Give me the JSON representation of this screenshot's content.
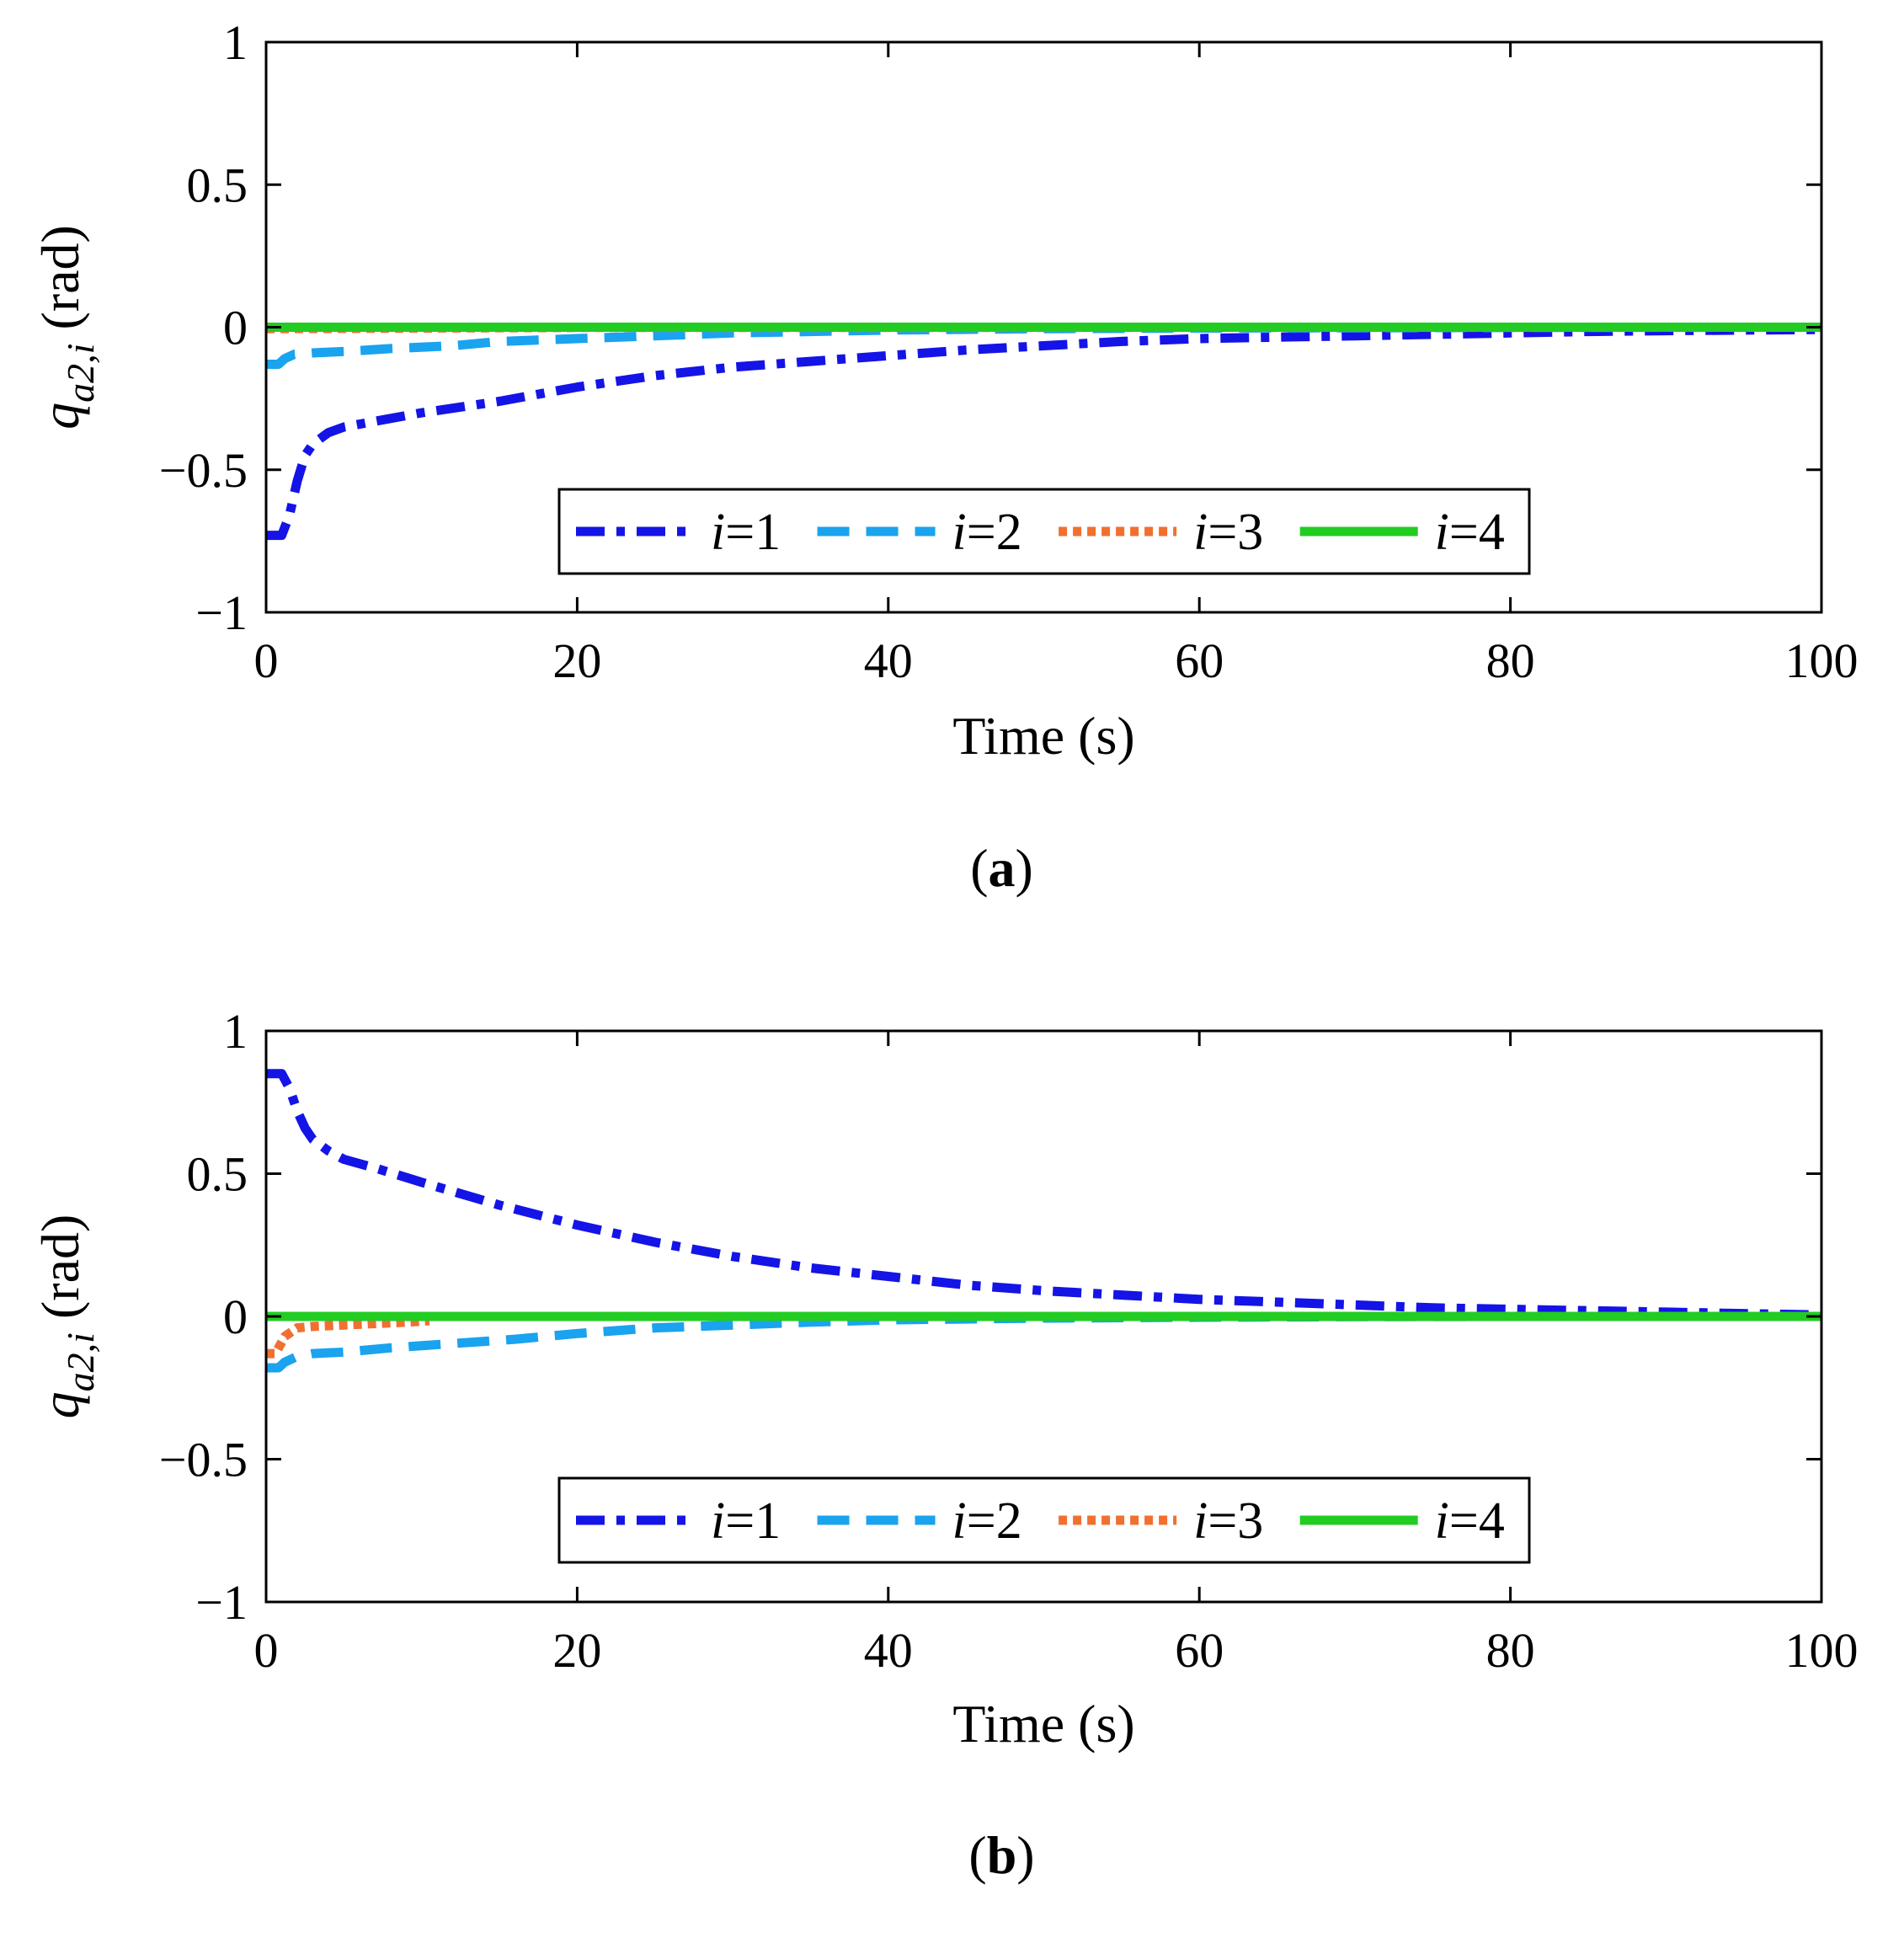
{
  "chart_data": [
    {
      "type": "line",
      "caption": "a",
      "xlabel": "Time (s)",
      "ylabel_main": "q",
      "ylabel_sub": "a2,i",
      "ylabel_unit": "(rad)",
      "xlim": [
        0,
        100
      ],
      "ylim": [
        -1,
        1
      ],
      "xticks": [
        "0",
        "20",
        "40",
        "60",
        "80",
        "100"
      ],
      "yticks": [
        "−1",
        "−0.5",
        "0",
        "0.5",
        "1"
      ],
      "grid": false,
      "legend_position": "bottom-center",
      "series": [
        {
          "name": "i=1",
          "legend_var": "i",
          "legend_eq": "=1",
          "color": "#1414e6",
          "style": "dashdot",
          "x": [
            0,
            1.0,
            1.5,
            2.0,
            2.5,
            3,
            4,
            5,
            7,
            10,
            15,
            20,
            25,
            30,
            35,
            40,
            45,
            50,
            55,
            60,
            65,
            70,
            75,
            80,
            85,
            90,
            95,
            100
          ],
          "y": [
            -0.73,
            -0.73,
            -0.66,
            -0.54,
            -0.45,
            -0.41,
            -0.37,
            -0.35,
            -0.33,
            -0.3,
            -0.26,
            -0.21,
            -0.17,
            -0.14,
            -0.12,
            -0.1,
            -0.08,
            -0.065,
            -0.05,
            -0.04,
            -0.035,
            -0.03,
            -0.025,
            -0.02,
            -0.015,
            -0.012,
            -0.01,
            -0.008
          ]
        },
        {
          "name": "i=2",
          "legend_var": "i",
          "legend_eq": "=2",
          "color": "#1aa3ee",
          "style": "dashed",
          "x": [
            0,
            0.8,
            1.2,
            1.8,
            3,
            5,
            8,
            12,
            15,
            20,
            25,
            30,
            40,
            50,
            60,
            70,
            80,
            100
          ],
          "y": [
            -0.13,
            -0.13,
            -0.11,
            -0.095,
            -0.09,
            -0.085,
            -0.075,
            -0.065,
            -0.05,
            -0.04,
            -0.03,
            -0.02,
            -0.01,
            -0.005,
            -0.003,
            -0.002,
            -0.001,
            0.0
          ]
        },
        {
          "name": "i=3",
          "legend_var": "i",
          "legend_eq": "=3",
          "color": "#f07030",
          "style": "dotted",
          "x": [
            0,
            5,
            10,
            20,
            100
          ],
          "y": [
            -0.005,
            -0.004,
            -0.003,
            -0.001,
            0.0
          ]
        },
        {
          "name": "i=4",
          "legend_var": "i",
          "legend_eq": "=4",
          "color": "#22cc22",
          "style": "solid",
          "x": [
            0,
            100
          ],
          "y": [
            0.0,
            0.0
          ]
        }
      ]
    },
    {
      "type": "line",
      "caption": "b",
      "xlabel": "Time (s)",
      "ylabel_main": "q",
      "ylabel_sub": "a2,i",
      "ylabel_unit": "(rad)",
      "xlim": [
        0,
        100
      ],
      "ylim": [
        -1,
        1
      ],
      "xticks": [
        "0",
        "20",
        "40",
        "60",
        "80",
        "100"
      ],
      "yticks": [
        "−1",
        "−0.5",
        "0",
        "0.5",
        "1"
      ],
      "grid": false,
      "legend_position": "bottom-center",
      "series": [
        {
          "name": "i=1",
          "legend_var": "i",
          "legend_eq": "=1",
          "color": "#1414e6",
          "style": "dashdot",
          "x": [
            0,
            1.0,
            1.5,
            2.0,
            2.5,
            3,
            4,
            5,
            7,
            10,
            15,
            20,
            25,
            30,
            35,
            40,
            45,
            50,
            55,
            60,
            65,
            70,
            75,
            80,
            85,
            90,
            95,
            100
          ],
          "y": [
            0.85,
            0.85,
            0.8,
            0.72,
            0.66,
            0.62,
            0.58,
            0.55,
            0.52,
            0.47,
            0.39,
            0.32,
            0.26,
            0.21,
            0.17,
            0.14,
            0.11,
            0.09,
            0.075,
            0.06,
            0.05,
            0.04,
            0.03,
            0.025,
            0.02,
            0.015,
            0.01,
            0.005
          ]
        },
        {
          "name": "i=2",
          "legend_var": "i",
          "legend_eq": "=2",
          "color": "#1aa3ee",
          "style": "dashed",
          "x": [
            0,
            0.8,
            1.2,
            2,
            3,
            5,
            8,
            12,
            16,
            20,
            25,
            30,
            35,
            40,
            50,
            60,
            70,
            80,
            100
          ],
          "y": [
            -0.18,
            -0.18,
            -0.16,
            -0.14,
            -0.13,
            -0.125,
            -0.11,
            -0.095,
            -0.08,
            -0.06,
            -0.04,
            -0.03,
            -0.02,
            -0.012,
            -0.006,
            -0.003,
            -0.001,
            0.0,
            0.0
          ]
        },
        {
          "name": "i=3",
          "legend_var": "i",
          "legend_eq": "=3",
          "color": "#f07030",
          "style": "dotted",
          "x": [
            0,
            0.6,
            1.2,
            2,
            3,
            5,
            7,
            9,
            10.5
          ],
          "y": [
            -0.13,
            -0.13,
            -0.07,
            -0.04,
            -0.035,
            -0.03,
            -0.025,
            -0.02,
            -0.015
          ]
        },
        {
          "name": "i=4",
          "legend_var": "i",
          "legend_eq": "=4",
          "color": "#22cc22",
          "style": "solid",
          "x": [
            0,
            100
          ],
          "y": [
            0.0,
            0.0
          ]
        }
      ]
    }
  ]
}
